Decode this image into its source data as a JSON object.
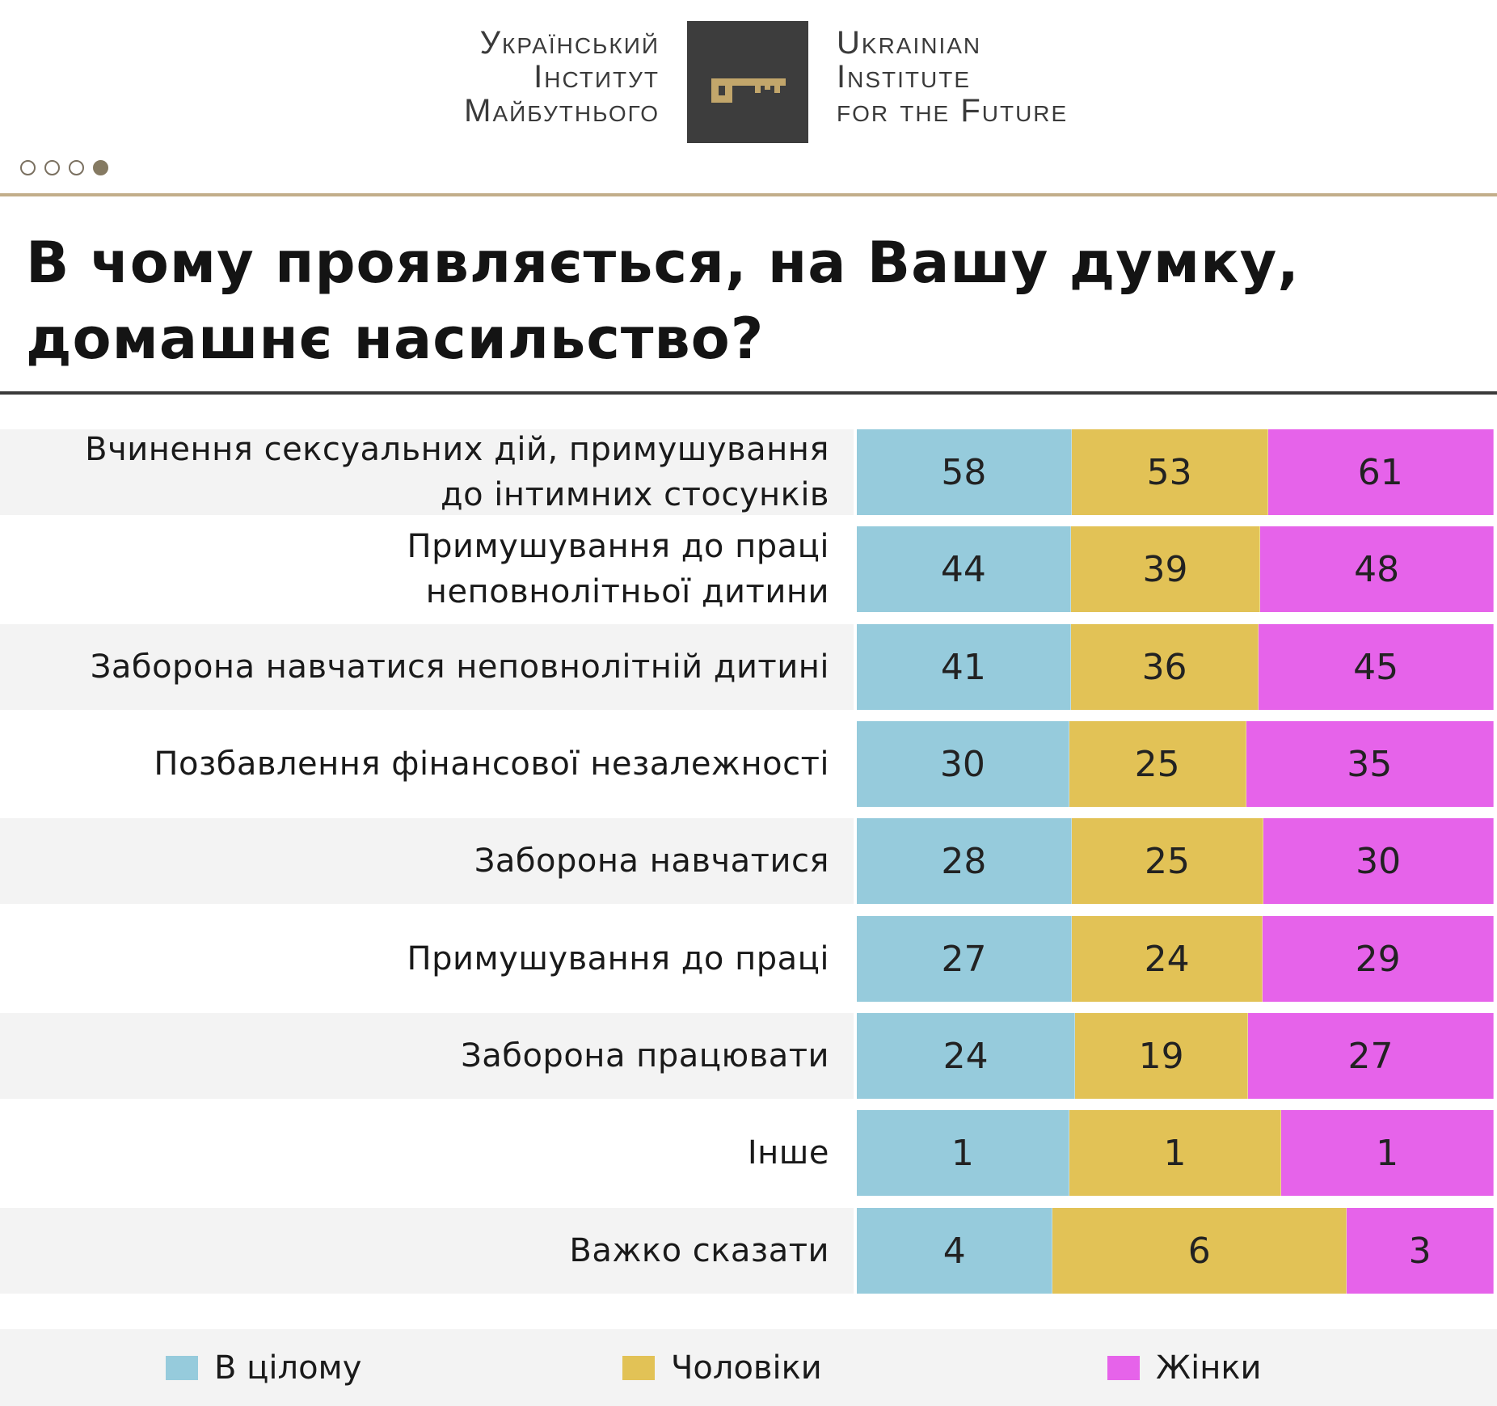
{
  "header": {
    "logo_ua": [
      "Український",
      "Інститут",
      "Майбутнього"
    ],
    "logo_en": [
      "Ukrainian",
      "Institute",
      "for the Future"
    ],
    "logo_icon": "key-icon",
    "pager": {
      "total": 4,
      "active": 4
    }
  },
  "title": "В чому проявляється, на Вашу думку, домашнє насильство?",
  "colors": {
    "overall": "#96cbdc",
    "men": "#e2c256",
    "women": "#e663ea",
    "accent": "#c2ae8a",
    "logo_bg": "#3d3d3d",
    "key": "#c2a66b"
  },
  "legend": [
    {
      "key": "overall",
      "label": "В цілому"
    },
    {
      "key": "men",
      "label": "Чоловіки"
    },
    {
      "key": "women",
      "label": "Жінки"
    }
  ],
  "chart_data": {
    "type": "bar",
    "orientation": "horizontal",
    "stacked": true,
    "title": "В чому проявляється, на Вашу думку, домашнє насильство?",
    "categories": [
      "Вчинення сексуальних дій, примушування\nдо інтимних стосунків",
      "Примушування до праці\nнеповнолітньої дитини",
      "Заборона навчатися неповнолітній дитині",
      "Позбавлення фінансової незалежності",
      "Заборона навчатися",
      "Примушування до праці",
      "Заборона працювати",
      "Інше",
      "Важко сказати"
    ],
    "series": [
      {
        "name": "В цілому",
        "key": "overall",
        "values": [
          58,
          44,
          41,
          30,
          28,
          27,
          24,
          1,
          4
        ]
      },
      {
        "name": "Чоловіки",
        "key": "men",
        "values": [
          53,
          39,
          36,
          25,
          25,
          24,
          19,
          1,
          6
        ]
      },
      {
        "name": "Жінки",
        "key": "women",
        "values": [
          61,
          48,
          45,
          35,
          30,
          29,
          27,
          1,
          3
        ]
      }
    ],
    "xlabel": "",
    "ylabel": "",
    "legend_position": "bottom"
  }
}
